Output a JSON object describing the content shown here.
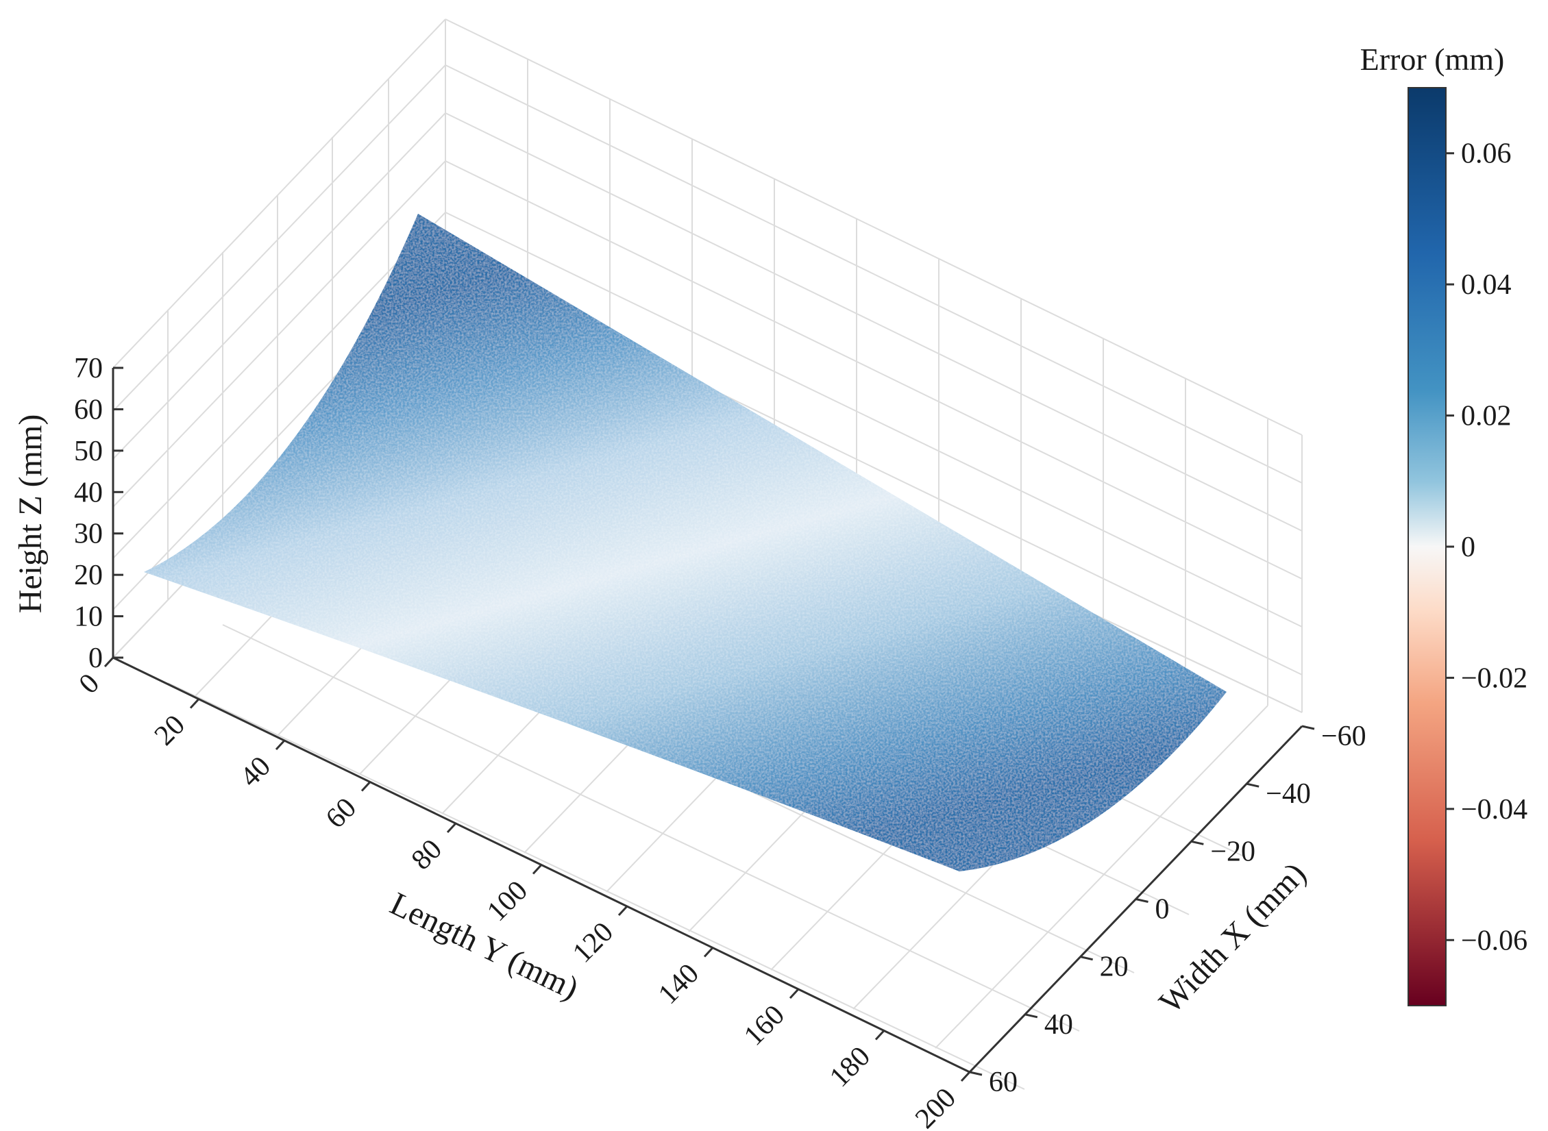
{
  "colors": {
    "positive_max": "#0b3a6b",
    "positive_mid": "#4a90c2",
    "zero": "#f7f7f7",
    "negative_mid": "#e0836a",
    "negative_max": "#7a0d22"
  },
  "chart_data": {
    "type": "surface3d",
    "title": "",
    "x_axis": {
      "label": "Width X (mm)",
      "range": [
        -60,
        60
      ],
      "ticks": [
        "−60",
        "−40",
        "−20",
        "0",
        "20",
        "40",
        "60"
      ]
    },
    "y_axis": {
      "label": "Length Y (mm)",
      "range": [
        0,
        200
      ],
      "ticks": [
        "0",
        "20",
        "40",
        "60",
        "80",
        "100",
        "120",
        "140",
        "160",
        "180",
        "200"
      ]
    },
    "z_axis": {
      "label": "Height Z (mm)",
      "range": [
        0,
        70
      ],
      "ticks": [
        "0",
        "10",
        "20",
        "30",
        "40",
        "50",
        "60",
        "70"
      ]
    },
    "colorbar": {
      "label": "Error (mm)",
      "range": [
        -0.07,
        0.07
      ],
      "ticks": [
        "0.06",
        "0.04",
        "0.02",
        "0",
        "−0.02",
        "−0.04",
        "−0.06"
      ],
      "colormap": "RdBu"
    },
    "surface": {
      "description_values": "error field over curved sheet; error approx 0.0 at centre line to about 0.05 near the long edges",
      "error_range_shown": [
        0.0,
        0.055
      ]
    },
    "grid": true
  }
}
